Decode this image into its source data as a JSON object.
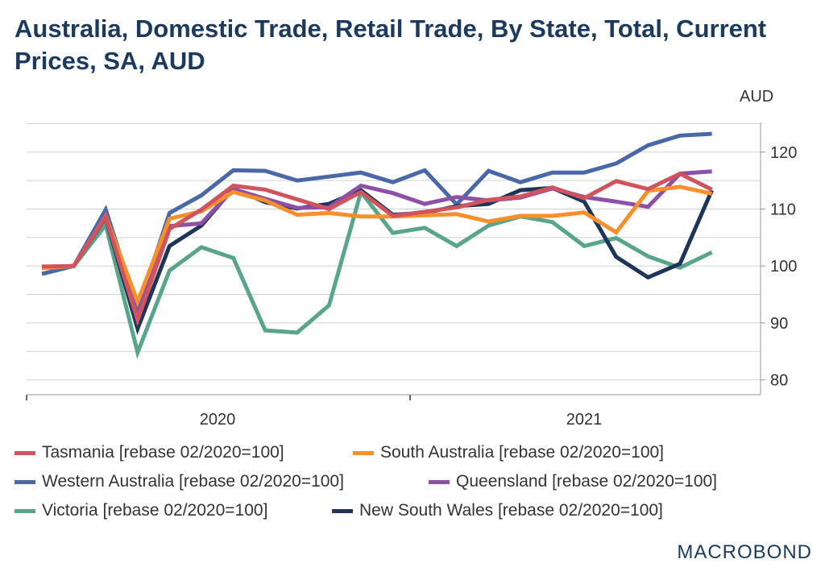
{
  "chart_data": {
    "type": "line",
    "title": "Australia, Domestic Trade, Retail Trade, By State, Total, Current Prices, SA, AUD",
    "ylabel": "AUD",
    "xlabel": "",
    "ylim": [
      77.4,
      125.2
    ],
    "yticks": [
      80,
      90,
      100,
      110,
      120
    ],
    "xtick_labels": [
      "2020",
      "2021"
    ],
    "x": [
      "2020-01",
      "2020-02",
      "2020-03",
      "2020-04",
      "2020-05",
      "2020-06",
      "2020-07",
      "2020-08",
      "2020-09",
      "2020-10",
      "2020-11",
      "2020-12",
      "2021-01",
      "2021-02",
      "2021-03",
      "2021-04",
      "2021-05",
      "2021-06",
      "2021-07",
      "2021-08",
      "2021-09",
      "2021-10"
    ],
    "grid": true,
    "legend_position": "bottom",
    "series": [
      {
        "name": "Victoria [rebase 02/2020=100]",
        "color": "#58a58c",
        "values": [
          99.7,
          100,
          107.2,
          84.8,
          99.2,
          103.3,
          101.4,
          88.7,
          88.3,
          93.1,
          113,
          105.8,
          106.7,
          103.5,
          107.1,
          108.7,
          107.7,
          103.5,
          104.9,
          101.7,
          99.7,
          102.4
        ]
      },
      {
        "name": "Western Australia [rebase 02/2020=100]",
        "color": "#4a67a8",
        "values": [
          98.6,
          100,
          109.9,
          92.3,
          109.3,
          112.4,
          116.8,
          116.7,
          115,
          115.7,
          116.4,
          114.7,
          116.8,
          110.8,
          116.7,
          114.7,
          116.4,
          116.4,
          118,
          121.2,
          122.9,
          123.2
        ]
      },
      {
        "name": "New South Wales [rebase 02/2020=100]",
        "color": "#1c3559",
        "values": [
          99.8,
          100,
          108.5,
          89,
          103.5,
          107.1,
          113.6,
          111.2,
          110.1,
          110.9,
          113.3,
          109,
          109.3,
          110.5,
          110.9,
          113.3,
          113.7,
          111.3,
          101.6,
          98,
          100.4,
          113.3
        ]
      },
      {
        "name": "Queensland [rebase 02/2020=100]",
        "color": "#8e50a6",
        "values": [
          99.8,
          100,
          108.9,
          91.5,
          107,
          107.5,
          113.5,
          111.8,
          110.2,
          110.3,
          114.1,
          112.8,
          110.9,
          112.1,
          111.5,
          112,
          113.6,
          112.1,
          111.3,
          110.4,
          116.2,
          116.6
        ]
      },
      {
        "name": "South Australia [rebase 02/2020=100]",
        "color": "#f7902b",
        "values": [
          99.6,
          100,
          108.7,
          93.7,
          108.3,
          109.6,
          113,
          111.5,
          109,
          109.3,
          108.7,
          108.7,
          108.9,
          109.1,
          107.8,
          108.8,
          108.8,
          109.4,
          105.9,
          113.2,
          113.9,
          112.7
        ]
      },
      {
        "name": "Tasmania [rebase 02/2020=100]",
        "color": "#d0545e",
        "values": [
          99.9,
          100,
          108.6,
          90.5,
          106.5,
          109.9,
          114.1,
          113.4,
          111.7,
          110,
          113,
          108.8,
          109.5,
          110.3,
          111.6,
          112.2,
          113.8,
          111.9,
          114.9,
          113.5,
          116.2,
          113.4
        ]
      }
    ]
  },
  "legend": [
    {
      "label": "Tasmania [rebase 02/2020=100]",
      "color": "#d0545e"
    },
    {
      "label": "South Australia [rebase 02/2020=100]",
      "color": "#f7902b"
    },
    {
      "label": "Western Australia [rebase 02/2020=100]",
      "color": "#4a67a8"
    },
    {
      "label": "Queensland [rebase 02/2020=100]",
      "color": "#8e50a6"
    },
    {
      "label": "Victoria [rebase 02/2020=100]",
      "color": "#58a58c"
    },
    {
      "label": "New South Wales [rebase 02/2020=100]",
      "color": "#1c3559"
    }
  ],
  "logo": "MACROBOND"
}
